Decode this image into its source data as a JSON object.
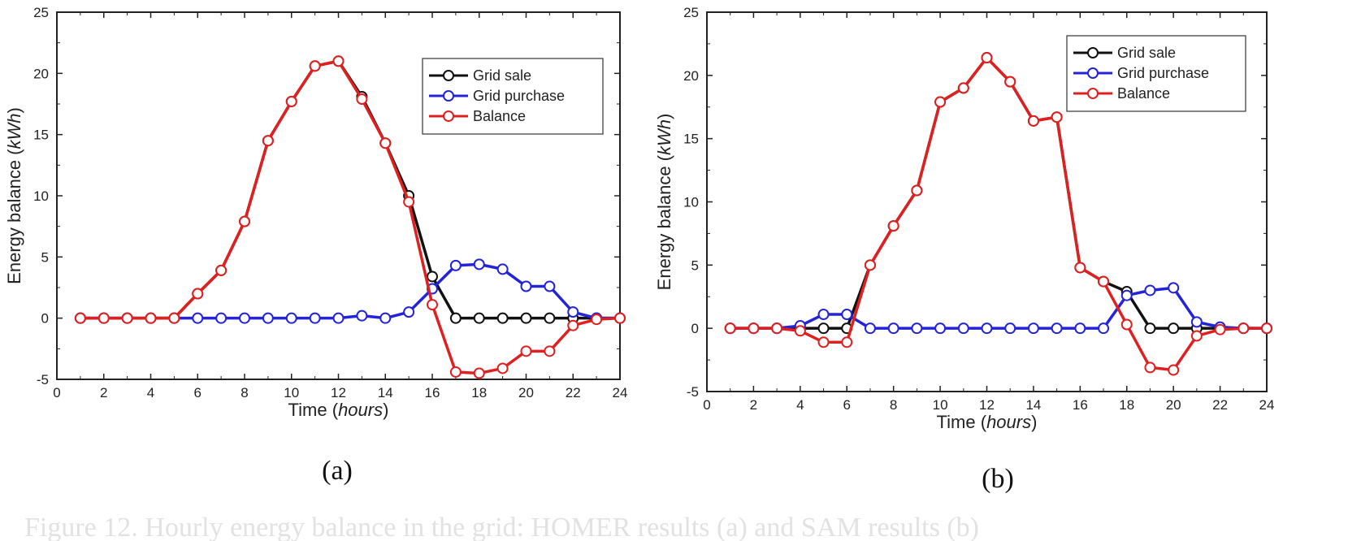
{
  "colors": {
    "grid_sale": "#111111",
    "grid_purchase": "#2323d8",
    "balance": "#e02020"
  },
  "caption": "Figure 12. Hourly energy balance in the grid: HOMER results (a) and SAM results (b)",
  "chart_data": [
    {
      "type": "line",
      "panel_label": "(a)",
      "xlabel": {
        "main": "Time (",
        "italic": "hours",
        "end": ")"
      },
      "ylabel": {
        "main": "Energy balance (",
        "italic": "kWh",
        "end": ")"
      },
      "xlim": [
        0,
        24
      ],
      "ylim": [
        -5,
        25
      ],
      "xticks": [
        0,
        2,
        4,
        6,
        8,
        10,
        12,
        14,
        16,
        18,
        20,
        22,
        24
      ],
      "yticks": [
        -5,
        0,
        5,
        10,
        15,
        20,
        25
      ],
      "legend_position": "top-right",
      "x": [
        1,
        2,
        3,
        4,
        5,
        6,
        7,
        8,
        9,
        10,
        11,
        12,
        13,
        14,
        15,
        16,
        17,
        18,
        19,
        20,
        21,
        22,
        23,
        24
      ],
      "series": [
        {
          "name": "Grid sale",
          "color_key": "grid_sale",
          "values": [
            0,
            0,
            0,
            0,
            0,
            2,
            3.9,
            7.9,
            14.5,
            17.7,
            20.6,
            21,
            18.1,
            14.3,
            10,
            3.4,
            0,
            0,
            0,
            0,
            0,
            0,
            0,
            0
          ]
        },
        {
          "name": "Grid purchase",
          "color_key": "grid_purchase",
          "values": [
            0,
            0,
            0,
            0,
            0,
            0,
            0,
            0,
            0,
            0,
            0,
            0,
            0.2,
            0,
            0.5,
            2.4,
            4.3,
            4.4,
            4,
            2.6,
            2.6,
            0.5,
            0,
            0
          ]
        },
        {
          "name": "Balance",
          "color_key": "balance",
          "values": [
            0,
            0,
            0,
            0,
            0,
            2,
            3.9,
            7.9,
            14.5,
            17.7,
            20.6,
            21,
            17.9,
            14.3,
            9.5,
            1.1,
            -4.4,
            -4.5,
            -4.1,
            -2.7,
            -2.7,
            -0.6,
            -0.1,
            0
          ]
        }
      ]
    },
    {
      "type": "line",
      "panel_label": "(b)",
      "xlabel": {
        "main": "Time (",
        "italic": "hours",
        "end": ")"
      },
      "ylabel": {
        "main": "Energy balance (",
        "italic": "kWh",
        "end": ")"
      },
      "xlim": [
        0,
        24
      ],
      "ylim": [
        -5,
        25
      ],
      "xticks": [
        0,
        2,
        4,
        6,
        8,
        10,
        12,
        14,
        16,
        18,
        20,
        22,
        24
      ],
      "yticks": [
        -5,
        0,
        5,
        10,
        15,
        20,
        25
      ],
      "legend_position": "top-right",
      "x": [
        1,
        2,
        3,
        4,
        5,
        6,
        7,
        8,
        9,
        10,
        11,
        12,
        13,
        14,
        15,
        16,
        17,
        18,
        19,
        20,
        21,
        22,
        23,
        24
      ],
      "series": [
        {
          "name": "Grid sale",
          "color_key": "grid_sale",
          "values": [
            0,
            0,
            0,
            0,
            0,
            0,
            5,
            8.1,
            10.9,
            17.9,
            19,
            21.4,
            19.5,
            16.4,
            16.7,
            4.8,
            3.7,
            2.9,
            0,
            0,
            0,
            0,
            0,
            0
          ]
        },
        {
          "name": "Grid purchase",
          "color_key": "grid_purchase",
          "values": [
            0,
            0,
            0,
            0.2,
            1.1,
            1.1,
            0,
            0,
            0,
            0,
            0,
            0,
            0,
            0,
            0,
            0,
            0,
            2.6,
            3,
            3.2,
            0.5,
            0.1,
            0,
            0
          ]
        },
        {
          "name": "Balance",
          "color_key": "balance",
          "values": [
            0,
            0,
            0,
            -0.2,
            -1.1,
            -1.1,
            5,
            8.1,
            10.9,
            17.9,
            19,
            21.4,
            19.5,
            16.4,
            16.7,
            4.8,
            3.7,
            0.3,
            -3.1,
            -3.3,
            -0.6,
            -0.1,
            0,
            0
          ]
        }
      ]
    }
  ]
}
